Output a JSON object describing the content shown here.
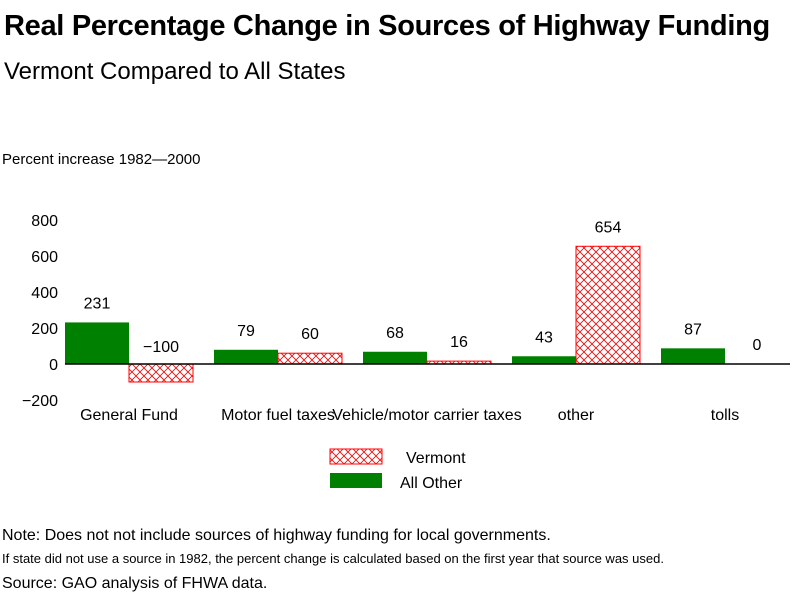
{
  "header": {
    "title": "Real Percentage Change in Sources of Highway Funding",
    "subtitle": "Vermont Compared to All States"
  },
  "notes": {
    "note": "Note: Does not not include sources of highway funding for local governments.",
    "footnote": "If state did not use a source in 1982, the percent change is calculated based on the first year that source was used.",
    "source": "Source: GAO analysis of FHWA data."
  },
  "chart_data": {
    "type": "bar",
    "title": "Real Percentage Change in Sources of Highway Funding",
    "subtitle": "Vermont Compared to All States",
    "xlabel": "",
    "ylabel": "Percent increase 1982—2000",
    "ylim": [
      -200,
      800
    ],
    "yticks": [
      -200,
      0,
      200,
      400,
      600,
      800
    ],
    "ytick_labels": [
      "−200",
      "0",
      "200",
      "400",
      "600",
      "800"
    ],
    "categories": [
      "General Fund",
      "Motor fuel taxes",
      "Vehicle/motor carrier taxes",
      "other",
      "tolls"
    ],
    "series": [
      {
        "name": "All Other",
        "color": "#008000",
        "pattern": "solid",
        "values": [
          231,
          79,
          68,
          43,
          87
        ]
      },
      {
        "name": "Vermont",
        "color": "#ff0000",
        "pattern": "crosshatch",
        "values": [
          -100,
          60,
          16,
          654,
          0
        ]
      }
    ],
    "data_labels": {
      "All Other": [
        "231",
        "79",
        "68",
        "43",
        "87"
      ],
      "Vermont": [
        "−100",
        "60",
        "16",
        "654",
        "0"
      ]
    },
    "legend": {
      "position": "bottom-center",
      "entries": [
        "Vermont",
        "All Other"
      ]
    },
    "grid": false
  }
}
